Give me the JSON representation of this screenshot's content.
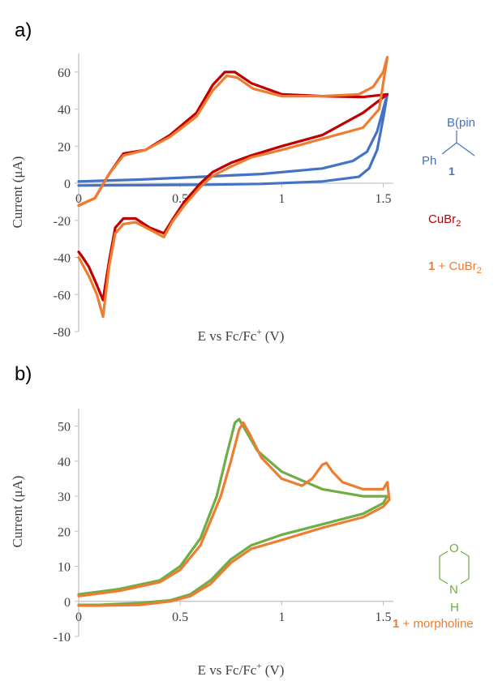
{
  "panel_a": {
    "label": "a)",
    "legend": {
      "pinacol_label": "B(pin",
      "ph_label": "Ph",
      "compound_number": "1",
      "cubr2_main": "CuBr",
      "cubr2_sub": "2",
      "mix_number": "1",
      "mix_text": " + CuBr",
      "mix_sub": "2"
    }
  },
  "panel_b": {
    "label": "b)",
    "legend": {
      "o_label": "O",
      "n_label": "N",
      "h_label": "H",
      "mix_number": "1",
      "mix_text": " + morpholine"
    }
  },
  "colors": {
    "compound_1": "#4472C4",
    "cubr2": "#C00000",
    "mix_cubr2": "#ED7D31",
    "morpholine": "#70AD47",
    "mix_morpholine": "#ED7D31",
    "axis": "#bfbfbf",
    "text": "#404040"
  },
  "chart_data": [
    {
      "type": "line",
      "panel": "a)",
      "xlabel": "E vs Fc/Fc⁺ (V)",
      "ylabel": "Current (μA)",
      "xlim": [
        0,
        1.55
      ],
      "ylim": [
        -80,
        70
      ],
      "xticks": [
        0,
        0.5,
        1,
        1.5
      ],
      "xtick_labels": [
        "0",
        "0.5",
        "1",
        "1.5"
      ],
      "yticks": [
        -80,
        -60,
        -40,
        -20,
        0,
        20,
        40,
        60
      ],
      "ytick_labels": [
        "-80",
        "-60",
        "-40",
        "-20",
        "0",
        "20",
        "40",
        "60"
      ],
      "grid": false,
      "series": [
        {
          "name": "1",
          "color_key": "compound_1",
          "x": [
            0,
            0.3,
            0.6,
            0.9,
            1.2,
            1.35,
            1.42,
            1.47,
            1.5,
            1.52,
            1.5,
            1.47,
            1.43,
            1.38,
            1.2,
            0.9,
            0.6,
            0.3,
            0
          ],
          "y": [
            1,
            2,
            3.5,
            5,
            8,
            12,
            17,
            28,
            40,
            48,
            35,
            18,
            8,
            3.5,
            1,
            -0.3,
            -0.8,
            -1,
            -1.2
          ]
        },
        {
          "name": "CuBr2",
          "color_key": "cubr2",
          "x": [
            0,
            0.08,
            0.15,
            0.22,
            0.33,
            0.45,
            0.58,
            0.66,
            0.72,
            0.77,
            0.85,
            1.0,
            1.2,
            1.4,
            1.52,
            1.4,
            1.2,
            1.0,
            0.85,
            0.75,
            0.66,
            0.6,
            0.52,
            0.46,
            0.42,
            0.35,
            0.28,
            0.22,
            0.18,
            0.15,
            0.12,
            0.09,
            0.05,
            0.02,
            0
          ],
          "y": [
            -12,
            -8,
            5,
            16,
            18,
            26,
            38,
            53,
            60,
            60,
            54,
            48,
            47,
            46.5,
            48,
            38,
            26,
            20,
            15,
            11,
            6,
            0,
            -10,
            -20,
            -27,
            -24,
            -19,
            -19,
            -24,
            -42,
            -63,
            -55,
            -45,
            -40,
            -37
          ]
        },
        {
          "name": "1 + CuBr2",
          "color_key": "mix_cubr2",
          "x": [
            0,
            0.08,
            0.15,
            0.22,
            0.33,
            0.45,
            0.58,
            0.66,
            0.73,
            0.78,
            0.86,
            1.0,
            1.2,
            1.38,
            1.45,
            1.5,
            1.52,
            1.48,
            1.4,
            1.2,
            1.0,
            0.85,
            0.75,
            0.66,
            0.6,
            0.52,
            0.46,
            0.42,
            0.35,
            0.28,
            0.22,
            0.18,
            0.15,
            0.12,
            0.09,
            0.05,
            0.02,
            0
          ],
          "y": [
            -12,
            -8,
            5,
            15,
            18,
            25,
            36,
            50,
            58,
            57,
            51,
            47,
            47,
            48,
            52,
            60,
            68,
            40,
            30,
            24,
            18,
            14,
            9,
            4,
            -2,
            -12,
            -21,
            -29,
            -25,
            -21,
            -22,
            -27,
            -45,
            -72,
            -60,
            -50,
            -44,
            -40
          ]
        }
      ]
    },
    {
      "type": "line",
      "panel": "b)",
      "xlabel": "E vs Fc/Fc⁺ (V)",
      "ylabel": "Current (μA)",
      "xlim": [
        0,
        1.55
      ],
      "ylim": [
        -10,
        55
      ],
      "xticks": [
        0,
        0.5,
        1,
        1.5
      ],
      "xtick_labels": [
        "0",
        "0.5",
        "1",
        "1.5"
      ],
      "yticks": [
        -10,
        0,
        10,
        20,
        30,
        40,
        50
      ],
      "ytick_labels": [
        "-10",
        "0",
        "10",
        "20",
        "30",
        "40",
        "50"
      ],
      "grid": false,
      "series": [
        {
          "name": "morpholine",
          "color_key": "morpholine",
          "x": [
            0,
            0.2,
            0.4,
            0.5,
            0.6,
            0.68,
            0.73,
            0.77,
            0.79,
            0.82,
            0.88,
            1.0,
            1.2,
            1.4,
            1.52,
            1.5,
            1.4,
            1.2,
            1.0,
            0.85,
            0.75,
            0.65,
            0.55,
            0.45,
            0.3,
            0.1,
            0
          ],
          "y": [
            2,
            3.5,
            6,
            10,
            18,
            30,
            42,
            51,
            52,
            49,
            43,
            37,
            32,
            30,
            30,
            28,
            25,
            22,
            19,
            16,
            12,
            6,
            2,
            0.3,
            -0.5,
            -1,
            -1
          ]
        },
        {
          "name": "1 + morpholine",
          "color_key": "mix_morpholine",
          "x": [
            0,
            0.2,
            0.4,
            0.5,
            0.6,
            0.7,
            0.75,
            0.79,
            0.81,
            0.84,
            0.9,
            1.0,
            1.1,
            1.15,
            1.2,
            1.22,
            1.25,
            1.3,
            1.4,
            1.5,
            1.52,
            1.53,
            1.5,
            1.4,
            1.2,
            1.0,
            0.85,
            0.75,
            0.65,
            0.55,
            0.45,
            0.3,
            0.1,
            0
          ],
          "y": [
            1.5,
            3,
            5.5,
            9,
            16,
            30,
            40,
            49,
            51,
            48,
            41,
            35,
            33,
            35,
            39,
            39.5,
            37,
            34,
            32,
            32,
            34,
            29,
            27,
            24,
            21,
            17.5,
            15,
            11,
            5,
            1.5,
            0,
            -1,
            -1.2,
            -1.2
          ]
        }
      ]
    }
  ]
}
